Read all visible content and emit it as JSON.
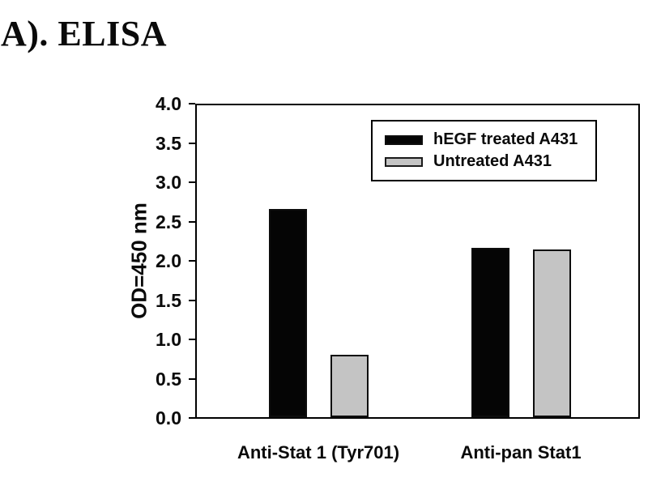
{
  "page": {
    "title": "A). ELISA"
  },
  "chart_data": {
    "type": "bar",
    "title": "A). ELISA",
    "categories": [
      "Anti-Stat 1 (Tyr701)",
      "Anti-pan Stat1"
    ],
    "series": [
      {
        "name": "hEGF treated A431",
        "color": "#050505",
        "values": [
          2.65,
          2.15
        ]
      },
      {
        "name": "Untreated A431",
        "color": "#c4c4c4",
        "values": [
          0.79,
          2.13
        ]
      }
    ],
    "xlabel": "",
    "ylabel": "OD=450 nm",
    "ylim": [
      0.0,
      4.0
    ],
    "ytick_step": 0.5,
    "ytick_labels": [
      "0.0",
      "0.5",
      "1.0",
      "1.5",
      "2.0",
      "2.5",
      "3.0",
      "3.5",
      "4.0"
    ],
    "grid": false,
    "legend_position": "top-right"
  },
  "colors": {
    "background": "#ffffff",
    "axis": "#000000",
    "text": "#0a0a0a",
    "bar_black": "#050505",
    "bar_gray": "#c4c4c4"
  }
}
